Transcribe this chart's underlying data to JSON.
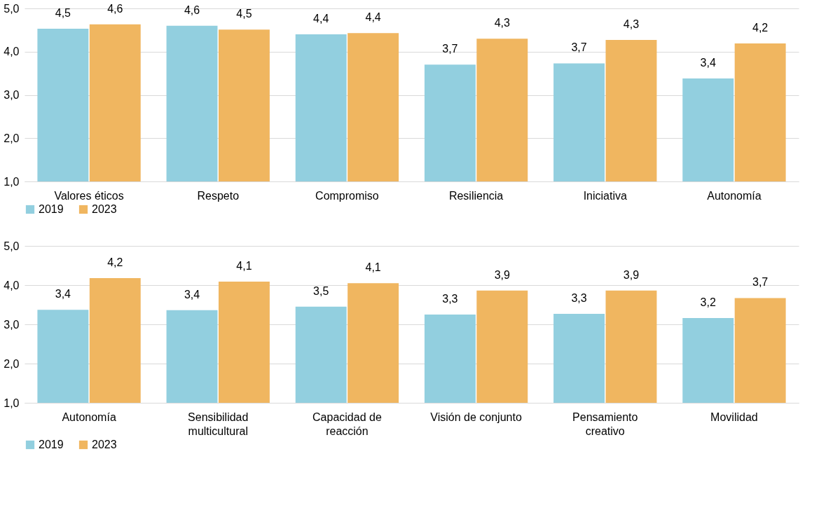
{
  "chart_data": [
    {
      "type": "bar",
      "categories": [
        "Valores éticos",
        "Respeto",
        "Compromiso",
        "Resiliencia",
        "Iniciativa",
        "Autonomía"
      ],
      "series": [
        {
          "name": "2019",
          "color": "#92cfdf",
          "values": [
            4.53,
            4.6,
            4.4,
            3.7,
            3.73,
            3.38
          ],
          "value_labels": [
            "4,5",
            "4,6",
            "4,4",
            "3,7",
            "3,7",
            "3,4"
          ]
        },
        {
          "name": "2023",
          "color": "#f0b660",
          "values": [
            4.63,
            4.51,
            4.43,
            4.3,
            4.27,
            4.19
          ],
          "value_labels": [
            "4,6",
            "4,5",
            "4,4",
            "4,3",
            "4,3",
            "4,2"
          ]
        }
      ],
      "ylim": [
        1,
        5
      ],
      "yticks": [
        {
          "value": 1,
          "label": "1,0"
        },
        {
          "value": 2,
          "label": "2,0"
        },
        {
          "value": 3,
          "label": "3,0"
        },
        {
          "value": 4,
          "label": "4,0"
        },
        {
          "value": 5,
          "label": "5,0"
        }
      ],
      "grid": "y",
      "legend": "bottom"
    },
    {
      "type": "bar",
      "categories": [
        "Autonomía",
        "Sensibilidad\nmulticultural",
        "Capacidad de\nreacción",
        "Visión de conjunto",
        "Pensamiento\ncreativo",
        "Movilidad"
      ],
      "series": [
        {
          "name": "2019",
          "color": "#92cfdf",
          "values": [
            3.37,
            3.36,
            3.45,
            3.25,
            3.27,
            3.16
          ],
          "value_labels": [
            "3,4",
            "3,4",
            "3,5",
            "3,3",
            "3,3",
            "3,2"
          ]
        },
        {
          "name": "2023",
          "color": "#f0b660",
          "values": [
            4.18,
            4.09,
            4.05,
            3.86,
            3.86,
            3.67
          ],
          "value_labels": [
            "4,2",
            "4,1",
            "4,1",
            "3,9",
            "3,9",
            "3,7"
          ]
        }
      ],
      "ylim": [
        1,
        5
      ],
      "yticks": [
        {
          "value": 1,
          "label": "1,0"
        },
        {
          "value": 2,
          "label": "2,0"
        },
        {
          "value": 3,
          "label": "3,0"
        },
        {
          "value": 4,
          "label": "4,0"
        },
        {
          "value": 5,
          "label": "5,0"
        }
      ],
      "grid": "y",
      "legend": "bottom"
    }
  ]
}
